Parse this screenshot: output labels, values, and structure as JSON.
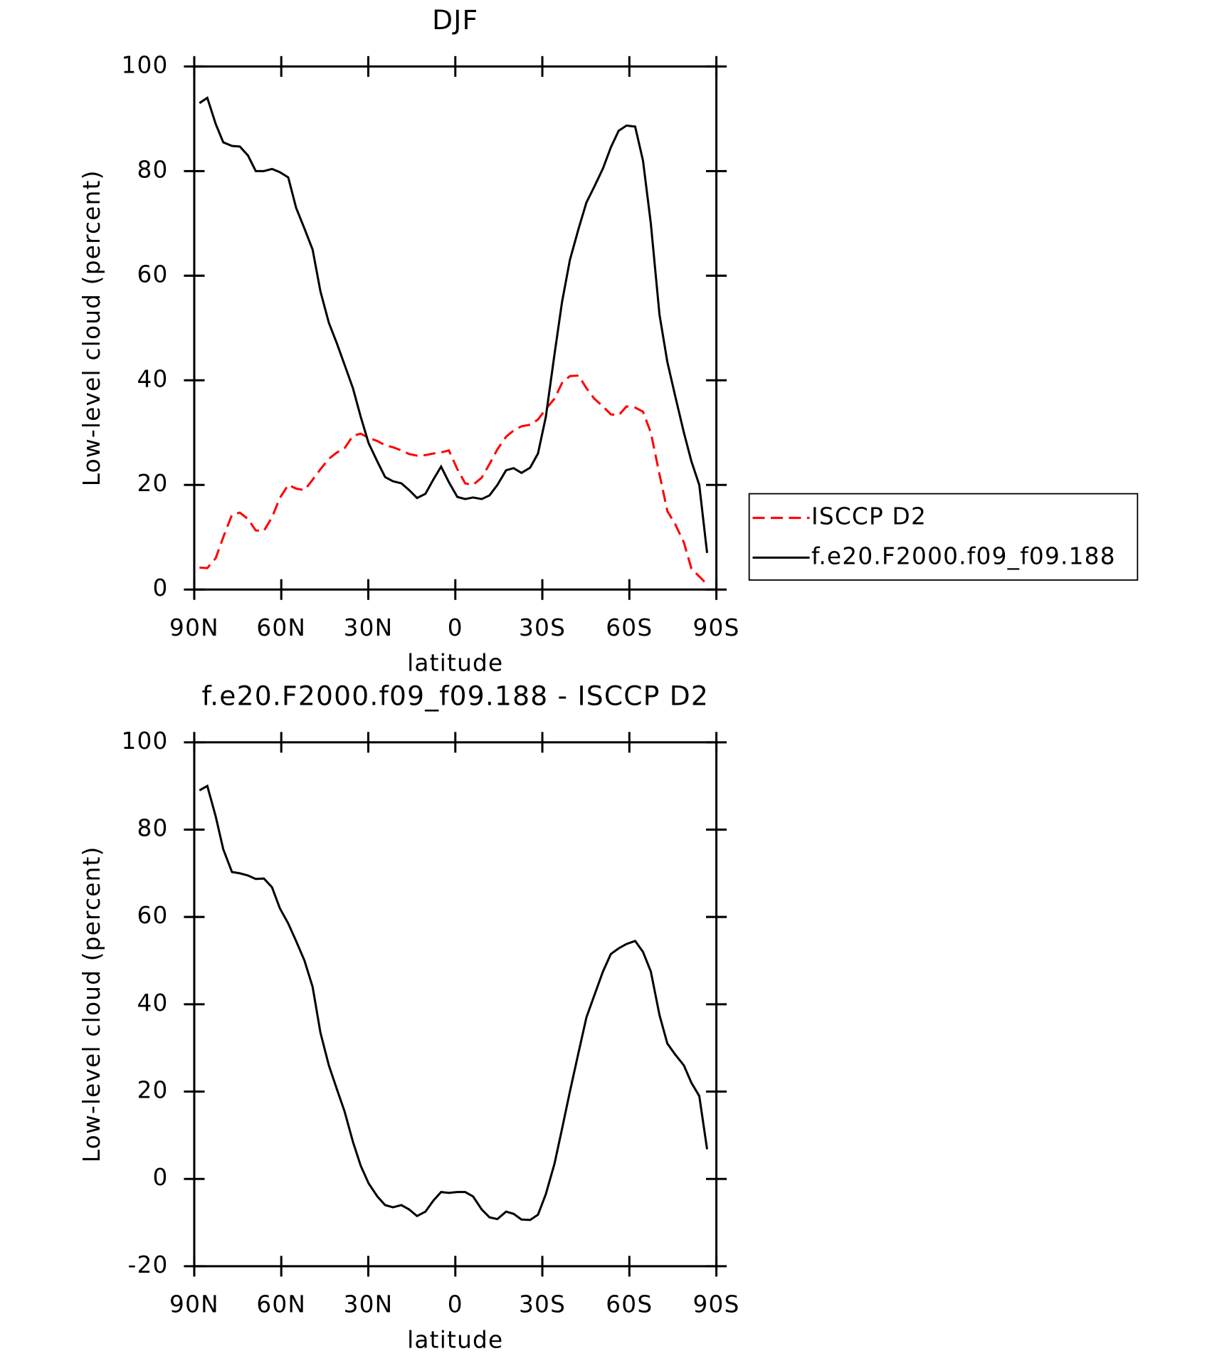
{
  "chart_data": [
    {
      "type": "line",
      "title": "DJF",
      "xlabel": "latitude",
      "ylabel": "Low-level cloud (percent)",
      "x": [
        88.2,
        85.5,
        82.6,
        80,
        77,
        74.3,
        71.5,
        68.8,
        66,
        63.2,
        60.5,
        57.6,
        54.9,
        52,
        49.2,
        46.5,
        43.6,
        40.8,
        38.2,
        35.3,
        32.6,
        29.9,
        26.9,
        24.2,
        21.5,
        18.6,
        15.9,
        13.2,
        10.3,
        7.6,
        4.9,
        2.2,
        -0.7,
        -3.4,
        -6.1,
        -9.1,
        -11.8,
        -14.5,
        -17.5,
        -20.1,
        -22.8,
        -25.8,
        -28.5,
        -31.2,
        -34.2,
        -36.8,
        -39.5,
        -42.5,
        -45.2,
        -47.9,
        -50.9,
        -53.6,
        -56.3,
        -59,
        -62,
        -64.7,
        -67.4,
        -70.4,
        -73.1,
        -75.8,
        -78.8,
        -81.4,
        -84.1,
        -86.8
      ],
      "series": [
        {
          "name": "ISCCP D2",
          "color": "#ff0000",
          "dash": true,
          "values": [
            4.2,
            4.1,
            6,
            10,
            14.3,
            14.7,
            13.5,
            11.3,
            11.2,
            13.8,
            17.5,
            20,
            19.3,
            19,
            21,
            23,
            25,
            26.2,
            27,
            29.4,
            29.8,
            29,
            28.4,
            27.6,
            27.2,
            26.6,
            25.9,
            25.6,
            25.7,
            26,
            26.2,
            26.6,
            23,
            20.3,
            20,
            21.4,
            24,
            26.8,
            29.2,
            30.4,
            31.2,
            31.5,
            32.5,
            34.5,
            36.5,
            39.5,
            40.8,
            40.9,
            38.5,
            36.5,
            35,
            33.5,
            33.3,
            35,
            34.8,
            34,
            30,
            22,
            15,
            12.5,
            9,
            4,
            2.5,
            1
          ]
        },
        {
          "name": "f.e20.F2000.f09_f09.188",
          "color": "#000000",
          "dash": false,
          "values": [
            93,
            94,
            89,
            85.5,
            84.8,
            84.7,
            83,
            80,
            80,
            80.4,
            79.8,
            78.8,
            73,
            69,
            65,
            57,
            51,
            47,
            43,
            38.5,
            33,
            28,
            24.5,
            21.5,
            20.7,
            20.3,
            19,
            17.5,
            18.3,
            21,
            23.5,
            20.5,
            17.7,
            17.3,
            17.6,
            17.3,
            18,
            20,
            22.8,
            23.2,
            22.3,
            23.3,
            26,
            33,
            45,
            55,
            63,
            69,
            74,
            77,
            80.5,
            84.5,
            87.7,
            88.7,
            88.5,
            82,
            70,
            52.5,
            43.5,
            37,
            30,
            24.5,
            20,
            7
          ]
        }
      ],
      "xlim": [
        90,
        -90
      ],
      "xticks": [
        {
          "value": 90,
          "label": "90N"
        },
        {
          "value": 60,
          "label": "60N"
        },
        {
          "value": 30,
          "label": "30N"
        },
        0,
        {
          "value": -30,
          "label": "30S"
        },
        {
          "value": -60,
          "label": "60S"
        },
        {
          "value": -90,
          "label": "90S"
        }
      ],
      "ylim": [
        0,
        100
      ],
      "yticks": [
        0,
        20,
        40,
        60,
        80,
        100
      ],
      "legend": "outside-right"
    },
    {
      "type": "line",
      "title": "f.e20.F2000.f09_f09.188 - ISCCP D2",
      "xlabel": "latitude",
      "ylabel": "Low-level cloud (percent)",
      "x": [
        88.2,
        85.5,
        82.6,
        80,
        77,
        74.3,
        71.5,
        68.8,
        66,
        63.2,
        60.5,
        57.6,
        54.9,
        52,
        49.2,
        46.5,
        43.6,
        40.8,
        38.2,
        35.3,
        32.6,
        29.9,
        26.9,
        24.2,
        21.5,
        18.6,
        15.9,
        13.2,
        10.3,
        7.6,
        4.9,
        2.2,
        -0.7,
        -3.4,
        -6.1,
        -9.1,
        -11.8,
        -14.5,
        -17.5,
        -20.1,
        -22.8,
        -25.8,
        -28.5,
        -31.2,
        -34.2,
        -36.8,
        -39.5,
        -42.5,
        -45.2,
        -47.9,
        -50.9,
        -53.6,
        -56.3,
        -59,
        -62,
        -64.7,
        -67.4,
        -70.4,
        -73.1,
        -75.8,
        -78.8,
        -81.4,
        -84.1,
        -86.8
      ],
      "series": [
        {
          "color": "#000000",
          "dash": false,
          "values": [
            89,
            90,
            83,
            75.5,
            70.3,
            70,
            69.5,
            68.7,
            68.8,
            66.8,
            62,
            58.5,
            54.5,
            50,
            44,
            33.5,
            26,
            20.5,
            15.5,
            8.5,
            3,
            -1,
            -4,
            -6,
            -6.5,
            -6,
            -7,
            -8.5,
            -7.5,
            -5,
            -3,
            -3.2,
            -3,
            -3,
            -4,
            -7,
            -8.8,
            -9.2,
            -7.5,
            -8,
            -9.3,
            -9.4,
            -8.2,
            -3.5,
            3.5,
            11.5,
            20,
            29,
            37,
            42,
            47.5,
            51.5,
            52.8,
            53.8,
            54.5,
            52,
            47.5,
            37.5,
            31,
            28.5,
            26,
            22,
            19,
            6.8
          ]
        }
      ],
      "xlim": [
        90,
        -90
      ],
      "xticks": [
        {
          "value": 90,
          "label": "90N"
        },
        {
          "value": 60,
          "label": "60N"
        },
        {
          "value": 30,
          "label": "30N"
        },
        0,
        {
          "value": -30,
          "label": "30S"
        },
        {
          "value": -60,
          "label": "60S"
        },
        {
          "value": -90,
          "label": "90S"
        }
      ],
      "ylim": [
        -20,
        100
      ],
      "yticks": [
        -20,
        0,
        20,
        40,
        60,
        80,
        100
      ]
    }
  ]
}
